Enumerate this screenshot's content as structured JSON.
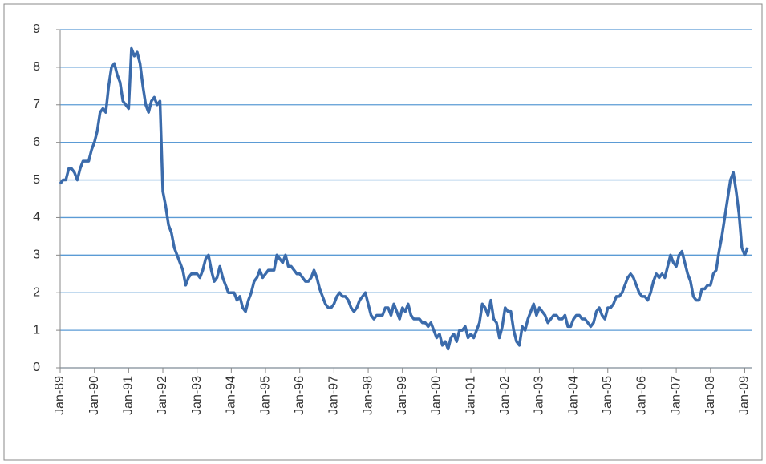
{
  "chart_data": {
    "type": "line",
    "color": "#3b6bab",
    "grid": true,
    "gridcolor": "#5b9bd5",
    "ylim": [
      0,
      9
    ],
    "yticks": [
      0,
      1,
      2,
      3,
      4,
      5,
      6,
      7,
      8,
      9
    ],
    "categories": [
      "Jan-89",
      null,
      null,
      null,
      null,
      null,
      null,
      null,
      null,
      null,
      null,
      null,
      "Jan-90",
      null,
      null,
      null,
      null,
      null,
      null,
      null,
      null,
      null,
      null,
      null,
      "Jan-91",
      null,
      null,
      null,
      null,
      null,
      null,
      null,
      null,
      null,
      null,
      null,
      "Jan-92",
      null,
      null,
      null,
      null,
      null,
      null,
      null,
      null,
      null,
      null,
      null,
      "Jan-93",
      null,
      null,
      null,
      null,
      null,
      null,
      null,
      null,
      null,
      null,
      null,
      "Jan-94",
      null,
      null,
      null,
      null,
      null,
      null,
      null,
      null,
      null,
      null,
      null,
      "Jan-95",
      null,
      null,
      null,
      null,
      null,
      null,
      null,
      null,
      null,
      null,
      null,
      "Jan-96",
      null,
      null,
      null,
      null,
      null,
      null,
      null,
      null,
      null,
      null,
      null,
      "Jan-97",
      null,
      null,
      null,
      null,
      null,
      null,
      null,
      null,
      null,
      null,
      null,
      "Jan-98",
      null,
      null,
      null,
      null,
      null,
      null,
      null,
      null,
      null,
      null,
      null,
      "Jan-99",
      null,
      null,
      null,
      null,
      null,
      null,
      null,
      null,
      null,
      null,
      null,
      "Jan-00",
      null,
      null,
      null,
      null,
      null,
      null,
      null,
      null,
      null,
      null,
      null,
      "Jan-01",
      null,
      null,
      null,
      null,
      null,
      null,
      null,
      null,
      null,
      null,
      null,
      "Jan-02",
      null,
      null,
      null,
      null,
      null,
      null,
      null,
      null,
      null,
      null,
      null,
      "Jan-03",
      null,
      null,
      null,
      null,
      null,
      null,
      null,
      null,
      null,
      null,
      null,
      "Jan-04",
      null,
      null,
      null,
      null,
      null,
      null,
      null,
      null,
      null,
      null,
      null,
      "Jan-05",
      null,
      null,
      null,
      null,
      null,
      null,
      null,
      null,
      null,
      null,
      null,
      "Jan-06",
      null,
      null,
      null,
      null,
      null,
      null,
      null,
      null,
      null,
      null,
      null,
      "Jan-07",
      null,
      null,
      null,
      null,
      null,
      null,
      null,
      null,
      null,
      null,
      null,
      "Jan-08",
      null,
      null,
      null,
      null,
      null,
      null,
      null,
      null,
      null,
      null,
      null,
      "Jan-09",
      null
    ],
    "values": [
      4.9,
      5.0,
      5.0,
      5.3,
      5.3,
      5.2,
      5.0,
      5.3,
      5.5,
      5.5,
      5.5,
      5.8,
      6.0,
      6.3,
      6.8,
      6.9,
      6.8,
      7.5,
      8.0,
      8.1,
      7.8,
      7.6,
      7.1,
      7.0,
      6.9,
      8.5,
      8.3,
      8.4,
      8.1,
      7.5,
      7.0,
      6.8,
      7.1,
      7.2,
      7.0,
      7.1,
      4.7,
      4.3,
      3.8,
      3.6,
      3.2,
      3.0,
      2.8,
      2.6,
      2.2,
      2.4,
      2.5,
      2.5,
      2.5,
      2.4,
      2.6,
      2.9,
      3.0,
      2.6,
      2.3,
      2.4,
      2.7,
      2.4,
      2.2,
      2.0,
      2.0,
      2.0,
      1.8,
      1.9,
      1.6,
      1.5,
      1.8,
      2.0,
      2.3,
      2.4,
      2.6,
      2.4,
      2.5,
      2.6,
      2.6,
      2.6,
      3.0,
      2.9,
      2.8,
      3.0,
      2.7,
      2.7,
      2.6,
      2.5,
      2.5,
      2.4,
      2.3,
      2.3,
      2.4,
      2.6,
      2.4,
      2.1,
      1.9,
      1.7,
      1.6,
      1.6,
      1.7,
      1.9,
      2.0,
      1.9,
      1.9,
      1.8,
      1.6,
      1.5,
      1.6,
      1.8,
      1.9,
      2.0,
      1.7,
      1.4,
      1.3,
      1.4,
      1.4,
      1.4,
      1.6,
      1.6,
      1.4,
      1.7,
      1.5,
      1.3,
      1.6,
      1.5,
      1.7,
      1.4,
      1.3,
      1.3,
      1.3,
      1.2,
      1.2,
      1.1,
      1.2,
      1.0,
      0.8,
      0.9,
      0.6,
      0.7,
      0.5,
      0.8,
      0.9,
      0.7,
      1.0,
      1.0,
      1.1,
      0.8,
      0.9,
      0.8,
      1.0,
      1.2,
      1.7,
      1.6,
      1.4,
      1.8,
      1.3,
      1.2,
      0.8,
      1.1,
      1.6,
      1.5,
      1.5,
      1.0,
      0.7,
      0.6,
      1.1,
      1.0,
      1.3,
      1.5,
      1.7,
      1.4,
      1.6,
      1.5,
      1.4,
      1.2,
      1.3,
      1.4,
      1.4,
      1.3,
      1.3,
      1.4,
      1.1,
      1.1,
      1.3,
      1.4,
      1.4,
      1.3,
      1.3,
      1.2,
      1.1,
      1.2,
      1.5,
      1.6,
      1.4,
      1.3,
      1.6,
      1.6,
      1.7,
      1.9,
      1.9,
      2.0,
      2.2,
      2.4,
      2.5,
      2.4,
      2.2,
      2.0,
      1.9,
      1.9,
      1.8,
      2.0,
      2.3,
      2.5,
      2.4,
      2.5,
      2.4,
      2.7,
      3.0,
      2.8,
      2.7,
      3.0,
      3.1,
      2.8,
      2.5,
      2.3,
      1.9,
      1.8,
      1.8,
      2.1,
      2.1,
      2.2,
      2.2,
      2.5,
      2.6,
      3.1,
      3.5,
      4.0,
      4.5,
      5.0,
      5.2,
      4.7,
      4.1,
      3.2,
      3.0,
      3.2
    ]
  }
}
